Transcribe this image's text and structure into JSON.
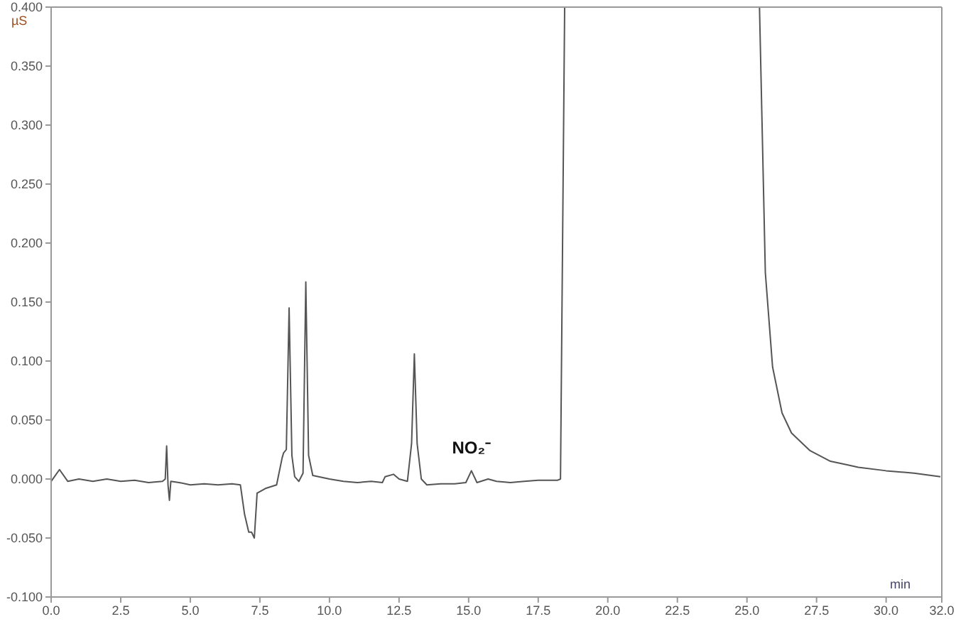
{
  "chart_data": {
    "type": "line",
    "xlabel": "min",
    "ylabel": "µS",
    "x": [
      0,
      0.3,
      0.6,
      1.0,
      1.5,
      2.0,
      2.5,
      3.0,
      3.5,
      4.0,
      4.1,
      4.15,
      4.2,
      4.25,
      4.3,
      4.6,
      5.0,
      5.5,
      6.0,
      6.5,
      6.8,
      6.95,
      7.1,
      7.2,
      7.3,
      7.4,
      7.7,
      8.1,
      8.3,
      8.35,
      8.45,
      8.55,
      8.65,
      8.75,
      8.9,
      9.05,
      9.15,
      9.25,
      9.4,
      10,
      10.5,
      11,
      11.5,
      11.9,
      12.0,
      12.3,
      12.5,
      12.8,
      12.95,
      13.05,
      13.15,
      13.3,
      13.5,
      14,
      14.5,
      14.9,
      15.1,
      15.3,
      15.7,
      16,
      16.5,
      17,
      17.5,
      18.2,
      18.3,
      18.45,
      22,
      25.45,
      25.66,
      25.92,
      26.26,
      26.6,
      27.0,
      27.27,
      28.0,
      28.6,
      29,
      30,
      31,
      31.95
    ],
    "series": [
      {
        "color": "#555555",
        "values": [
          -0.002,
          0.008,
          -0.002,
          0.0,
          -0.002,
          0.0,
          -0.002,
          -0.001,
          -0.003,
          -0.002,
          0.0,
          0.028,
          -0.005,
          -0.018,
          -0.002,
          -0.003,
          -0.005,
          -0.004,
          -0.005,
          -0.004,
          -0.005,
          -0.03,
          -0.045,
          -0.045,
          -0.05,
          -0.012,
          -0.008,
          -0.005,
          0.018,
          0.022,
          0.025,
          0.145,
          0.02,
          0.002,
          -0.002,
          0.005,
          0.167,
          0.02,
          0.003,
          0.0,
          -0.002,
          -0.003,
          -0.002,
          -0.003,
          0.002,
          0.004,
          0.0,
          -0.002,
          0.03,
          0.106,
          0.03,
          0.0,
          -0.005,
          -0.004,
          -0.004,
          -0.003,
          0.007,
          -0.003,
          0.0,
          -0.002,
          -0.003,
          -0.002,
          -0.001,
          -0.001,
          0.0,
          0.4,
          null,
          0.4,
          0.175,
          0.095,
          0.056,
          0.039,
          0.03,
          0.024,
          0.015,
          0.012,
          0.01,
          0.007,
          0.005,
          0.002
        ]
      }
    ],
    "xlim": [
      0,
      32
    ],
    "xticks": [
      {
        "value": 0,
        "label": "0.0"
      },
      {
        "value": 2.5,
        "label": "2.5"
      },
      {
        "value": 5,
        "label": "5.0"
      },
      {
        "value": 7.5,
        "label": "7.5"
      },
      {
        "value": 10,
        "label": "10.0"
      },
      {
        "value": 12.5,
        "label": "12.5"
      },
      {
        "value": 15,
        "label": "15.0"
      },
      {
        "value": 17.5,
        "label": "17.5"
      },
      {
        "value": 20,
        "label": "20.0"
      },
      {
        "value": 22.5,
        "label": "22.5"
      },
      {
        "value": 25,
        "label": "25.0"
      },
      {
        "value": 27.5,
        "label": "27.5"
      },
      {
        "value": 30,
        "label": "30.0"
      },
      {
        "value": 32,
        "label": "32.0"
      }
    ],
    "ylim": [
      -0.1,
      0.4
    ],
    "yticks": [
      {
        "value": -0.1,
        "label": "-0.100"
      },
      {
        "value": -0.05,
        "label": "-0.050"
      },
      {
        "value": 0,
        "label": "0.000"
      },
      {
        "value": 0.05,
        "label": "0.050"
      },
      {
        "value": 0.1,
        "label": "0.100"
      },
      {
        "value": 0.15,
        "label": "0.150"
      },
      {
        "value": 0.2,
        "label": "0.200"
      },
      {
        "value": 0.25,
        "label": "0.250"
      },
      {
        "value": 0.3,
        "label": "0.300"
      },
      {
        "value": 0.35,
        "label": "0.350"
      },
      {
        "value": 0.4,
        "label": "0.400"
      }
    ],
    "annotations": [
      {
        "text": "NO₂⁻",
        "x": 15.1,
        "y": 0.007
      }
    ],
    "marker": "none",
    "grid": false,
    "legend": false
  }
}
